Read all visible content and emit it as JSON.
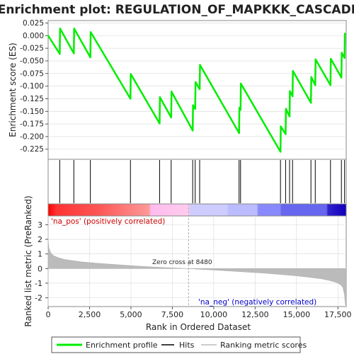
{
  "chart_data": [
    {
      "type": "line",
      "title": "Enrichment plot: REGULATION_OF_MAPKKK_CASCADE",
      "ylabel": "Enrichment score (ES)",
      "xlim": [
        0,
        18000
      ],
      "ylim": [
        -0.245,
        0.03
      ],
      "yticks": [
        0.025,
        0.0,
        -0.025,
        -0.05,
        -0.075,
        -0.1,
        -0.125,
        -0.15,
        -0.175,
        -0.2,
        -0.225
      ],
      "ytick_labels": [
        "0.025",
        "0.000",
        "-0.025",
        "-0.050",
        "-0.075",
        "-0.100",
        "-0.125",
        "-0.150",
        "-0.175",
        "-0.200",
        "-0.225"
      ],
      "grid": true,
      "series": [
        {
          "name": "Enrichment profile",
          "color": "#00ee00",
          "x": [
            0,
            700,
            720,
            1550,
            1570,
            2550,
            2570,
            4970,
            4990,
            6730,
            6750,
            7430,
            7450,
            8730,
            8750,
            8880,
            8900,
            9150,
            9170,
            11530,
            11550,
            11620,
            11640,
            14030,
            14050,
            14340,
            14360,
            14580,
            14600,
            14760,
            14780,
            15870,
            15890,
            16130,
            16150,
            17050,
            17070,
            17710,
            17730,
            17900,
            17920
          ],
          "y": [
            0.0,
            -0.036,
            0.014,
            -0.035,
            0.014,
            -0.043,
            0.007,
            -0.125,
            -0.076,
            -0.174,
            -0.122,
            -0.162,
            -0.111,
            -0.188,
            -0.138,
            -0.145,
            -0.092,
            -0.106,
            -0.058,
            -0.193,
            -0.143,
            -0.147,
            -0.095,
            -0.23,
            -0.18,
            -0.195,
            -0.145,
            -0.16,
            -0.11,
            -0.12,
            -0.07,
            -0.133,
            -0.082,
            -0.098,
            -0.047,
            -0.098,
            -0.046,
            -0.083,
            -0.034,
            -0.044,
            0.004
          ]
        }
      ]
    },
    {
      "type": "hits",
      "series_name": "Hits",
      "hit_positions": [
        700,
        1550,
        2550,
        4970,
        6730,
        7430,
        8730,
        8880,
        9150,
        11530,
        11620,
        14030,
        14340,
        14580,
        14760,
        15870,
        16130,
        17050,
        17710,
        17900
      ]
    },
    {
      "type": "heatmap",
      "xlim": [
        0,
        18000
      ],
      "stops": [
        {
          "x": 0,
          "color": "#ff0000"
        },
        {
          "x": 500,
          "color": "#ff3333"
        },
        {
          "x": 3000,
          "color": "#ff5555"
        },
        {
          "x": 6100,
          "color": "#ff9999"
        },
        {
          "x": 6200,
          "color": "#ffbbee"
        },
        {
          "x": 8500,
          "color": "#ffccee"
        },
        {
          "x": 8600,
          "color": "#ccccff"
        },
        {
          "x": 10800,
          "color": "#ccccff"
        },
        {
          "x": 10900,
          "color": "#bbbbff"
        },
        {
          "x": 12600,
          "color": "#bbbbff"
        },
        {
          "x": 12700,
          "color": "#8888ff"
        },
        {
          "x": 14000,
          "color": "#8888ff"
        },
        {
          "x": 14100,
          "color": "#6666ee"
        },
        {
          "x": 16800,
          "color": "#6666ee"
        },
        {
          "x": 16900,
          "color": "#3322cc"
        },
        {
          "x": 17950,
          "color": "#1100bb"
        }
      ],
      "pos_label": "'na_pos' (positively correlated)",
      "pos_color": "#cc0000",
      "neg_label": "'na_neg' (negatively correlated)",
      "neg_color": "#0000cc"
    },
    {
      "type": "area",
      "xlabel": "Rank in Ordered Dataset",
      "ylabel": "Ranked list metric (PreRanked)",
      "xlim": [
        0,
        18000
      ],
      "ylim": [
        -2.6,
        3.6
      ],
      "xticks": [
        0,
        2500,
        5000,
        7500,
        10000,
        12500,
        15000,
        17500
      ],
      "xtick_labels": [
        "0",
        "2,500",
        "5,000",
        "7,500",
        "10,000",
        "12,500",
        "15,000",
        "17,500"
      ],
      "yticks": [
        3,
        2,
        1,
        0,
        -1,
        -2
      ],
      "ytick_labels": [
        "3",
        "2",
        "1",
        "0",
        "-1",
        "-2"
      ],
      "zero_cross": 8480,
      "zero_cross_label": "Zero cross at 8480",
      "fill_color": "#bbbbbb",
      "series": [
        {
          "name": "Ranking metric scores",
          "x": [
            0,
            50,
            150,
            300,
            600,
            1000,
            2000,
            3000,
            4000,
            5000,
            6000,
            7000,
            8000,
            8480,
            9000,
            10000,
            11000,
            12000,
            13000,
            14000,
            15000,
            15800,
            16500,
            17000,
            17400,
            17650,
            17800,
            17900,
            17950
          ],
          "y": [
            1.9,
            1.4,
            1.1,
            0.9,
            0.75,
            0.62,
            0.46,
            0.36,
            0.28,
            0.2,
            0.13,
            0.07,
            0.02,
            0.0,
            -0.04,
            -0.1,
            -0.17,
            -0.24,
            -0.31,
            -0.4,
            -0.5,
            -0.6,
            -0.7,
            -0.82,
            -0.95,
            -1.1,
            -1.3,
            -1.8,
            -2.5
          ]
        }
      ]
    }
  ],
  "legend": {
    "items": [
      {
        "label": "Enrichment profile",
        "color": "#00ee00",
        "icon": "green-line-icon"
      },
      {
        "label": "Hits",
        "color": "#000000",
        "icon": "black-line-icon"
      },
      {
        "label": "Ranking metric scores",
        "color": "#bbbbbb",
        "icon": "gray-line-icon"
      }
    ]
  },
  "colors": {
    "zero_line": "#aaaaaa",
    "grid": "#d8d8d8",
    "frame": "#888888"
  }
}
